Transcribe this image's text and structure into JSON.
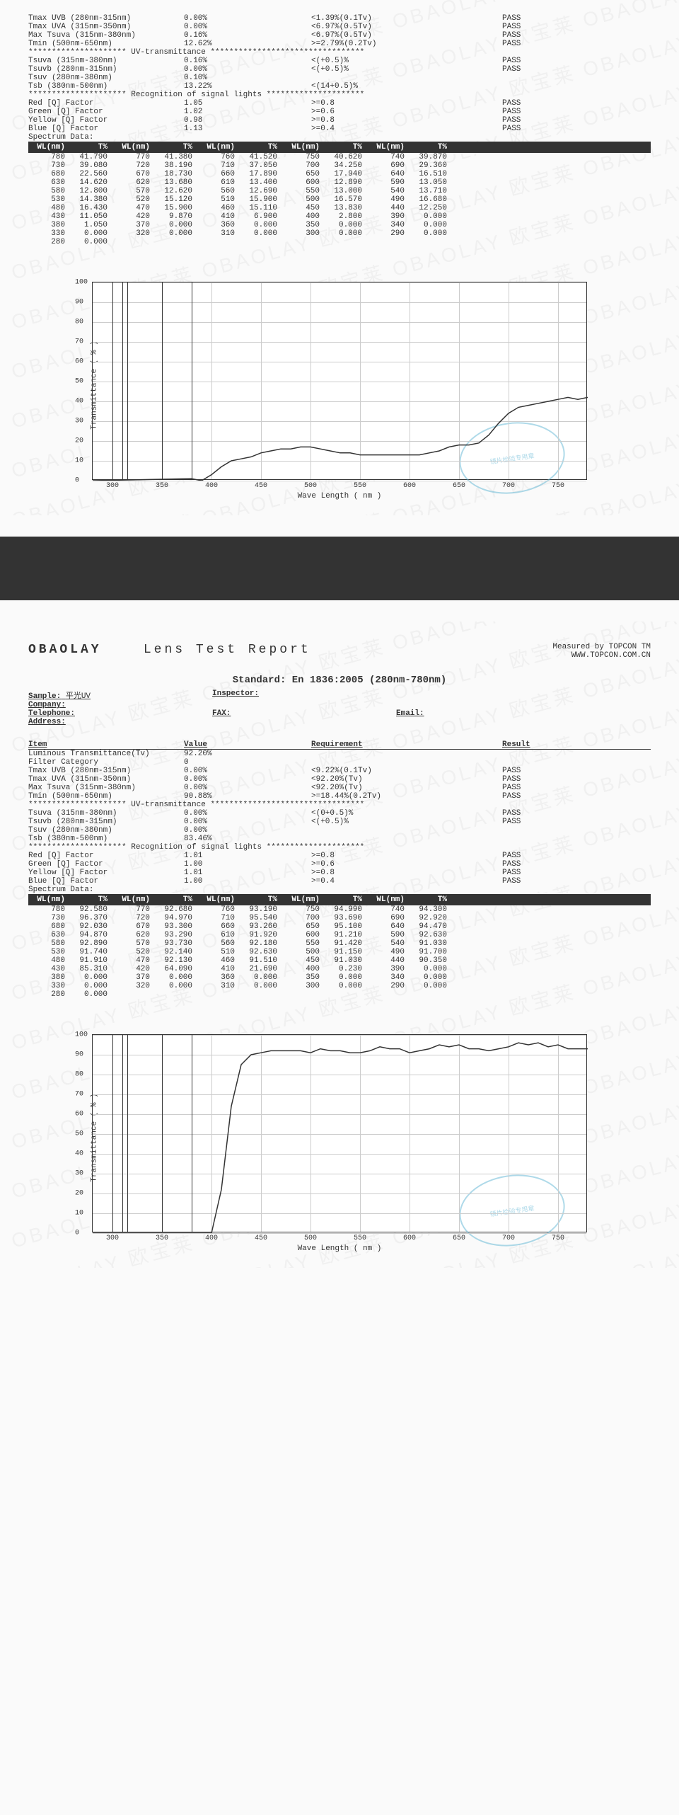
{
  "chart_style": {
    "ylabel": "Transmittance ( % )",
    "xlabel": "Wave Length ( nm )",
    "xticks": [
      300,
      350,
      400,
      450,
      500,
      550,
      600,
      650,
      700,
      750
    ],
    "yticks": [
      0,
      10,
      20,
      30,
      40,
      50,
      60,
      70,
      80,
      90,
      100
    ],
    "grid_color": "#cccccc",
    "curve_color": "#333333",
    "bg_color": "#ffffff"
  },
  "stamp_text": "镜片检验专用章",
  "page1": {
    "measurements": [
      {
        "name": "Tmax UVB  (280nm-315nm)",
        "value": "0.00%",
        "req": "<1.39%(0.1Tv)",
        "res": "PASS"
      },
      {
        "name": "Tmax UVA  (315nm-350nm)",
        "value": "0.00%",
        "req": "<6.97%(0.5Tv)",
        "res": "PASS"
      },
      {
        "name": "Max Tsuva (315nm-380nm)",
        "value": "0.16%",
        "req": "<6.97%(0.5Tv)",
        "res": "PASS"
      },
      {
        "name": "Tmin      (500nm-650nm)",
        "value": "12.62%",
        "req": ">=2.79%(0.2Tv)",
        "res": "PASS"
      }
    ],
    "uv_sep": "********************* UV-transmittance *********************************",
    "uv": [
      {
        "name": "Tsuva  (315nm-380nm)",
        "value": "0.16%",
        "req": "<(+0.5)%",
        "res": "PASS"
      },
      {
        "name": "Tsuvb  (280nm-315nm)",
        "value": "0.00%",
        "req": "<(+0.5)%",
        "res": "PASS"
      },
      {
        "name": "Tsuv   (280nm-380nm)",
        "value": "0.10%",
        "req": "",
        "res": ""
      },
      {
        "name": "Tsb    (380nm-500nm)",
        "value": "13.22%",
        "req": "<(14+0.5)%",
        "res": ""
      }
    ],
    "sig_sep": "********************* Recognition of signal lights *********************",
    "signal": [
      {
        "name": "Red    [Q] Factor",
        "value": "1.05",
        "req": ">=0.8",
        "res": "PASS"
      },
      {
        "name": "Green  [Q] Factor",
        "value": "1.02",
        "req": ">=0.6",
        "res": "PASS"
      },
      {
        "name": "Yellow [Q] Factor",
        "value": "0.98",
        "req": ">=0.8",
        "res": "PASS"
      },
      {
        "name": "Blue   [Q] Factor",
        "value": "1.13",
        "req": ">=0.4",
        "res": "PASS"
      }
    ],
    "spectrum_title": "Spectrum Data:",
    "spectrum_header": [
      "WL(nm)",
      "T%",
      "WL(nm)",
      "T%",
      "WL(nm)",
      "T%",
      "WL(nm)",
      "T%",
      "WL(nm)",
      "T%"
    ],
    "spectrum_rows": [
      [
        "780",
        "41.790",
        "770",
        "41.380",
        "760",
        "41.520",
        "750",
        "40.620",
        "740",
        "39.870"
      ],
      [
        "730",
        "39.080",
        "720",
        "38.190",
        "710",
        "37.050",
        "700",
        "34.250",
        "690",
        "29.360"
      ],
      [
        "680",
        "22.560",
        "670",
        "18.730",
        "660",
        "17.890",
        "650",
        "17.940",
        "640",
        "16.510"
      ],
      [
        "630",
        "14.620",
        "620",
        "13.680",
        "610",
        "13.400",
        "600",
        "12.890",
        "590",
        "13.050"
      ],
      [
        "580",
        "12.800",
        "570",
        "12.620",
        "560",
        "12.690",
        "550",
        "13.000",
        "540",
        "13.710"
      ],
      [
        "530",
        "14.380",
        "520",
        "15.120",
        "510",
        "15.900",
        "500",
        "16.570",
        "490",
        "16.680"
      ],
      [
        "480",
        "16.430",
        "470",
        "15.900",
        "460",
        "15.110",
        "450",
        "13.830",
        "440",
        "12.250"
      ],
      [
        "430",
        "11.050",
        "420",
        "9.870",
        "410",
        "6.900",
        "400",
        "2.800",
        "390",
        "0.000"
      ],
      [
        "380",
        "1.050",
        "370",
        "0.000",
        "360",
        "0.000",
        "350",
        "0.000",
        "340",
        "0.000"
      ],
      [
        "330",
        "0.000",
        "320",
        "0.000",
        "310",
        "0.000",
        "300",
        "0.000",
        "290",
        "0.000"
      ],
      [
        "280",
        "0.000",
        "",
        "",
        "",
        "",
        "",
        "",
        "",
        ""
      ]
    ],
    "curve_points": [
      [
        280,
        0
      ],
      [
        380,
        1
      ],
      [
        390,
        0
      ],
      [
        400,
        3
      ],
      [
        410,
        7
      ],
      [
        420,
        10
      ],
      [
        430,
        11
      ],
      [
        440,
        12
      ],
      [
        450,
        14
      ],
      [
        460,
        15
      ],
      [
        470,
        16
      ],
      [
        480,
        16
      ],
      [
        490,
        17
      ],
      [
        500,
        17
      ],
      [
        510,
        16
      ],
      [
        520,
        15
      ],
      [
        530,
        14
      ],
      [
        540,
        14
      ],
      [
        550,
        13
      ],
      [
        560,
        13
      ],
      [
        570,
        13
      ],
      [
        580,
        13
      ],
      [
        590,
        13
      ],
      [
        600,
        13
      ],
      [
        610,
        13
      ],
      [
        620,
        14
      ],
      [
        630,
        15
      ],
      [
        640,
        17
      ],
      [
        650,
        18
      ],
      [
        660,
        18
      ],
      [
        670,
        19
      ],
      [
        680,
        23
      ],
      [
        690,
        29
      ],
      [
        700,
        34
      ],
      [
        710,
        37
      ],
      [
        720,
        38
      ],
      [
        730,
        39
      ],
      [
        740,
        40
      ],
      [
        750,
        41
      ],
      [
        760,
        42
      ],
      [
        770,
        41
      ],
      [
        780,
        42
      ]
    ]
  },
  "page2": {
    "brand": "OBAOLAY",
    "title": "Lens   Test   Report",
    "measured_by": "Measured by TOPCON TM",
    "website": "WWW.TOPCON.COM.CN",
    "standard": "Standard: En 1836:2005 (280nm-780nm)",
    "meta": {
      "sample_label": "Sample:",
      "sample": "平光UV",
      "inspector_label": "Inspector:",
      "company_label": "Company:",
      "telephone_label": "Telephone:",
      "fax_label": "FAX:",
      "email_label": "Email:",
      "address_label": "Address:"
    },
    "hdr": {
      "item": "Item",
      "value": "Value",
      "req": "Requirement",
      "res": "Result"
    },
    "measurements": [
      {
        "name": "Luminous Transmittance(Tv)",
        "value": "92.20%",
        "req": "",
        "res": ""
      },
      {
        "name": "Filter Category",
        "value": "0",
        "req": "",
        "res": ""
      },
      {
        "name": "Tmax UVB  (280nm-315nm)",
        "value": "0.00%",
        "req": "<9.22%(0.1Tv)",
        "res": "PASS"
      },
      {
        "name": "Tmax UVA  (315nm-350nm)",
        "value": "0.00%",
        "req": "<92.20%(Tv)",
        "res": "PASS"
      },
      {
        "name": "Max Tsuva (315nm-380nm)",
        "value": "0.00%",
        "req": "<92.20%(Tv)",
        "res": "PASS"
      },
      {
        "name": "Tmin      (500nm-650nm)",
        "value": "90.88%",
        "req": ">=18.44%(0.2Tv)",
        "res": "PASS"
      }
    ],
    "uv_sep": "********************* UV-transmittance *********************************",
    "uv": [
      {
        "name": "Tsuva  (315nm-380nm)",
        "value": "0.00%",
        "req": "<(0+0.5)%",
        "res": "PASS"
      },
      {
        "name": "Tsuvb  (280nm-315nm)",
        "value": "0.00%",
        "req": "<(+0.5)%",
        "res": "PASS"
      },
      {
        "name": "Tsuv   (280nm-380nm)",
        "value": "0.00%",
        "req": "",
        "res": ""
      },
      {
        "name": "Tsb    (380nm-500nm)",
        "value": "83.46%",
        "req": "",
        "res": ""
      }
    ],
    "sig_sep": "********************* Recognition of signal lights *********************",
    "signal": [
      {
        "name": "Red    [Q] Factor",
        "value": "1.01",
        "req": ">=0.8",
        "res": "PASS"
      },
      {
        "name": "Green  [Q] Factor",
        "value": "1.00",
        "req": ">=0.6",
        "res": "PASS"
      },
      {
        "name": "Yellow [Q] Factor",
        "value": "1.01",
        "req": ">=0.8",
        "res": "PASS"
      },
      {
        "name": "Blue   [Q] Factor",
        "value": "1.00",
        "req": ">=0.4",
        "res": "PASS"
      }
    ],
    "spectrum_title": "Spectrum Data:",
    "spectrum_header": [
      "WL(nm)",
      "T%",
      "WL(nm)",
      "T%",
      "WL(nm)",
      "T%",
      "WL(nm)",
      "T%",
      "WL(nm)",
      "T%"
    ],
    "spectrum_rows": [
      [
        "780",
        "92.580",
        "770",
        "92.680",
        "760",
        "93.190",
        "750",
        "94.990",
        "740",
        "94.300"
      ],
      [
        "730",
        "96.370",
        "720",
        "94.970",
        "710",
        "95.540",
        "700",
        "93.690",
        "690",
        "92.920"
      ],
      [
        "680",
        "92.030",
        "670",
        "93.300",
        "660",
        "93.260",
        "650",
        "95.100",
        "640",
        "94.470"
      ],
      [
        "630",
        "94.870",
        "620",
        "93.290",
        "610",
        "91.920",
        "600",
        "91.210",
        "590",
        "92.630"
      ],
      [
        "580",
        "92.890",
        "570",
        "93.730",
        "560",
        "92.180",
        "550",
        "91.420",
        "540",
        "91.030"
      ],
      [
        "530",
        "91.740",
        "520",
        "92.140",
        "510",
        "92.630",
        "500",
        "91.150",
        "490",
        "91.700"
      ],
      [
        "480",
        "91.910",
        "470",
        "92.130",
        "460",
        "91.510",
        "450",
        "91.030",
        "440",
        "90.350"
      ],
      [
        "430",
        "85.310",
        "420",
        "64.090",
        "410",
        "21.690",
        "400",
        "0.230",
        "390",
        "0.000"
      ],
      [
        "380",
        "0.000",
        "370",
        "0.000",
        "360",
        "0.000",
        "350",
        "0.000",
        "340",
        "0.000"
      ],
      [
        "330",
        "0.000",
        "320",
        "0.000",
        "310",
        "0.000",
        "300",
        "0.000",
        "290",
        "0.000"
      ],
      [
        "280",
        "0.000",
        "",
        "",
        "",
        "",
        "",
        "",
        "",
        ""
      ]
    ],
    "curve_points": [
      [
        280,
        0
      ],
      [
        390,
        0
      ],
      [
        400,
        0
      ],
      [
        410,
        22
      ],
      [
        420,
        64
      ],
      [
        430,
        85
      ],
      [
        440,
        90
      ],
      [
        450,
        91
      ],
      [
        460,
        92
      ],
      [
        470,
        92
      ],
      [
        480,
        92
      ],
      [
        490,
        92
      ],
      [
        500,
        91
      ],
      [
        510,
        93
      ],
      [
        520,
        92
      ],
      [
        530,
        92
      ],
      [
        540,
        91
      ],
      [
        550,
        91
      ],
      [
        560,
        92
      ],
      [
        570,
        94
      ],
      [
        580,
        93
      ],
      [
        590,
        93
      ],
      [
        600,
        91
      ],
      [
        610,
        92
      ],
      [
        620,
        93
      ],
      [
        630,
        95
      ],
      [
        640,
        94
      ],
      [
        650,
        95
      ],
      [
        660,
        93
      ],
      [
        670,
        93
      ],
      [
        680,
        92
      ],
      [
        690,
        93
      ],
      [
        700,
        94
      ],
      [
        710,
        96
      ],
      [
        720,
        95
      ],
      [
        730,
        96
      ],
      [
        740,
        94
      ],
      [
        750,
        95
      ],
      [
        760,
        93
      ],
      [
        770,
        93
      ],
      [
        780,
        93
      ]
    ]
  }
}
